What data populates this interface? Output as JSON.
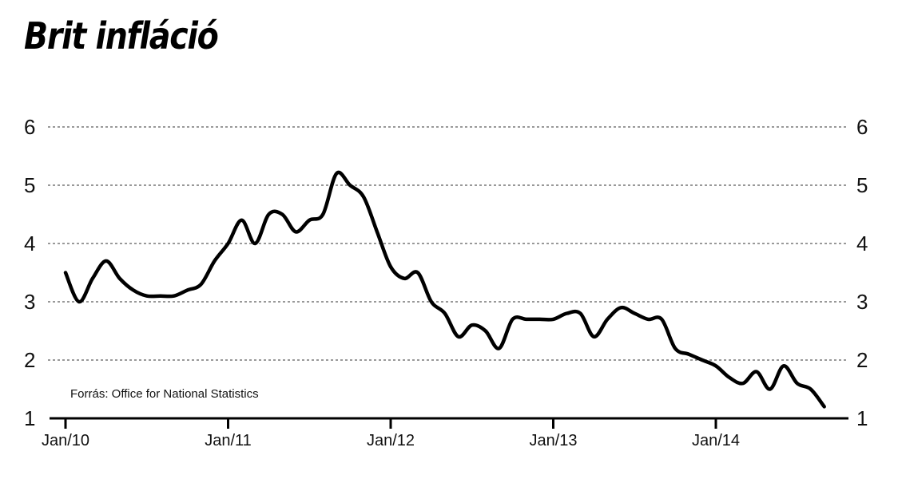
{
  "title": "Brit infláció",
  "source": "Forrás: Office for National Statistics",
  "chart_data": {
    "type": "line",
    "title": "Brit infláció",
    "xlabel": "",
    "ylabel": "",
    "ylim": [
      1,
      6
    ],
    "yticks": [
      1,
      2,
      3,
      4,
      5,
      6
    ],
    "y_axis_sides": "left-and-right",
    "grid": "horizontal-dashed",
    "xlim": [
      "2009-12",
      "2014-10"
    ],
    "xticks": [
      {
        "label": "Jan/10",
        "date": "2010-01"
      },
      {
        "label": "Jan/11",
        "date": "2011-01"
      },
      {
        "label": "Jan/12",
        "date": "2012-01"
      },
      {
        "label": "Jan/13",
        "date": "2013-01"
      },
      {
        "label": "Jan/14",
        "date": "2014-01"
      }
    ],
    "line_color": "#000000",
    "series": [
      {
        "x": [
          "2010-01",
          "2010-02",
          "2010-03",
          "2010-04",
          "2010-05",
          "2010-06",
          "2010-07",
          "2010-08",
          "2010-09",
          "2010-10",
          "2010-11",
          "2010-12",
          "2011-01",
          "2011-02",
          "2011-03",
          "2011-04",
          "2011-05",
          "2011-06",
          "2011-07",
          "2011-08",
          "2011-09",
          "2011-10",
          "2011-11",
          "2011-12",
          "2012-01",
          "2012-02",
          "2012-03",
          "2012-04",
          "2012-05",
          "2012-06",
          "2012-07",
          "2012-08",
          "2012-09",
          "2012-10",
          "2012-11",
          "2012-12",
          "2013-01",
          "2013-02",
          "2013-03",
          "2013-04",
          "2013-05",
          "2013-06",
          "2013-07",
          "2013-08",
          "2013-09",
          "2013-10",
          "2013-11",
          "2013-12",
          "2014-01",
          "2014-02",
          "2014-03",
          "2014-04",
          "2014-05",
          "2014-06",
          "2014-07",
          "2014-08",
          "2014-09"
        ],
        "values": [
          3.5,
          3.0,
          3.4,
          3.7,
          3.4,
          3.2,
          3.1,
          3.1,
          3.1,
          3.2,
          3.3,
          3.7,
          4.0,
          4.4,
          4.0,
          4.5,
          4.5,
          4.2,
          4.4,
          4.5,
          5.2,
          5.0,
          4.8,
          4.2,
          3.6,
          3.4,
          3.5,
          3.0,
          2.8,
          2.4,
          2.6,
          2.5,
          2.2,
          2.7,
          2.7,
          2.7,
          2.7,
          2.8,
          2.8,
          2.4,
          2.7,
          2.9,
          2.8,
          2.7,
          2.7,
          2.2,
          2.1,
          2.0,
          1.9,
          1.7,
          1.6,
          1.8,
          1.5,
          1.9,
          1.6,
          1.5,
          1.2
        ]
      }
    ]
  }
}
